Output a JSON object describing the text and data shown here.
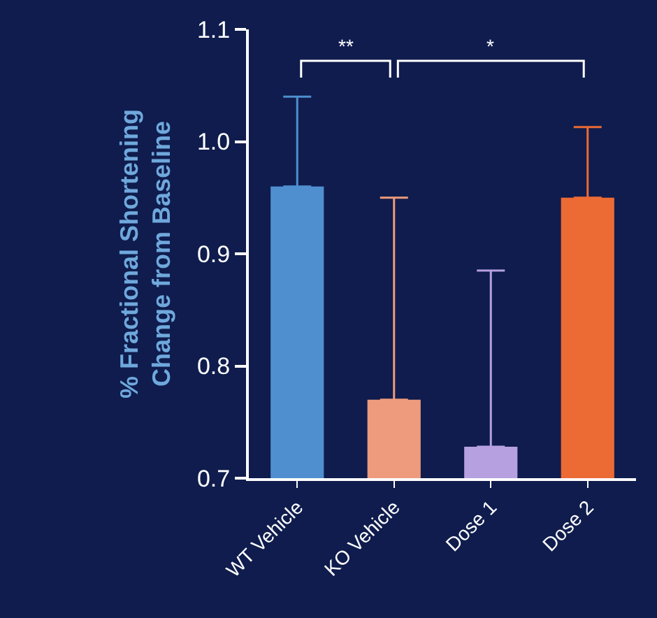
{
  "chart_data": {
    "type": "bar",
    "ylabel": "% Fractional Shortening\nChange from Baseline",
    "categories": [
      "WT Vehicle",
      "KO Vehicle",
      "Dose 1",
      "Dose 2"
    ],
    "values": [
      0.96,
      0.77,
      0.728,
      0.95
    ],
    "errors": [
      [
        0.96,
        1.04
      ],
      [
        0.77,
        0.95
      ],
      [
        0.728,
        0.885
      ],
      [
        0.95,
        1.013
      ]
    ],
    "colors": [
      "#4f8fd0",
      "#ee9a7c",
      "#b6a0e0",
      "#ec6a34"
    ],
    "ylim": [
      0.7,
      1.1
    ],
    "yticks": [
      {
        "value": 0.7,
        "label": "0.7"
      },
      {
        "value": 0.8,
        "label": "0.8"
      },
      {
        "value": 0.9,
        "label": "0.9"
      },
      {
        "value": 1.0,
        "label": "1.0"
      },
      {
        "value": 1.1,
        "label": "1.1"
      }
    ],
    "annotations": [
      "**",
      "*"
    ]
  }
}
